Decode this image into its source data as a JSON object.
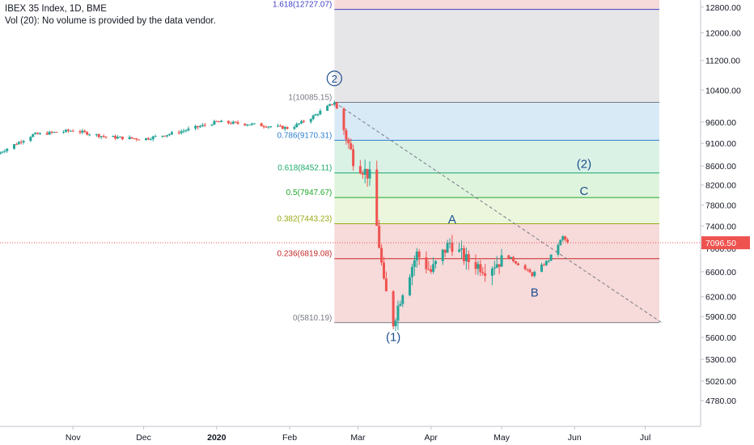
{
  "header": {
    "title": "IBEX 35 Index, 1D, BME",
    "volume_note": "Vol (20): No volume is provided by the data vendor."
  },
  "colors": {
    "up": "#26a69a",
    "down": "#ef5350",
    "current_price": "#ef5350",
    "wave_text": "#1e4f8f",
    "axis_text": "#131722",
    "axis_line": "#c0c3cc"
  },
  "price_axis": {
    "ylim": [
      4500,
      12950
    ],
    "ticks": [
      "12800.00",
      "12000.00",
      "11200.00",
      "10400.00",
      "9600.00",
      "9100.00",
      "8600.00",
      "8200.00",
      "7800.00",
      "7400.00",
      "7000.00",
      "6600.00",
      "6200.00",
      "5900.00",
      "5600.00",
      "5300.00",
      "5020.00",
      "4780.00"
    ],
    "scale": "log",
    "current_price": "7096.50"
  },
  "time_axis": {
    "ticks": [
      {
        "label": "Nov",
        "bold": false
      },
      {
        "label": "Dec",
        "bold": false
      },
      {
        "label": "2020",
        "bold": true
      },
      {
        "label": "Feb",
        "bold": false
      },
      {
        "label": "Mar",
        "bold": false
      },
      {
        "label": "Apr",
        "bold": false
      },
      {
        "label": "May",
        "bold": false
      },
      {
        "label": "Jun",
        "bold": false
      },
      {
        "label": "Jul",
        "bold": false
      }
    ]
  },
  "fibonacci": {
    "levels": [
      {
        "ratio": 1.618,
        "price": 12727.07,
        "label": "1.618(12727.07)",
        "color": "#3f3fc8",
        "fill": "#c8c8f0"
      },
      {
        "ratio": 1,
        "price": 10085.15,
        "label": "1(10085.15)",
        "color": "#787b86",
        "fill": "#e2e2e4"
      },
      {
        "ratio": 0.786,
        "price": 9170.31,
        "label": "0.786(9170.31)",
        "color": "#2f7fd1",
        "fill": "#d2e6f6"
      },
      {
        "ratio": 0.618,
        "price": 8452.11,
        "label": "0.618(8452.11)",
        "color": "#1aa86b",
        "fill": "#d4efe2"
      },
      {
        "ratio": 0.5,
        "price": 7947.67,
        "label": "0.5(7947.67)",
        "color": "#1fa82a",
        "fill": "#d9f2d7"
      },
      {
        "ratio": 0.382,
        "price": 7443.23,
        "label": "0.382(7443.23)",
        "color": "#9aa814",
        "fill": "#e7f4d7"
      },
      {
        "ratio": 0.236,
        "price": 6819.08,
        "label": "0.236(6819.08)",
        "color": "#c62828",
        "fill": "#f6d4d4"
      },
      {
        "ratio": 0,
        "price": 5810.19,
        "label": "0(5810.19)",
        "color": "#787b86",
        "fill": "#f6d4d4"
      }
    ]
  },
  "annotations": {
    "wave2_circled": "2",
    "wave1": "(1)",
    "wave2": "(2)",
    "A": "A",
    "B": "B",
    "C": "C"
  },
  "chart_data": {
    "type": "candlestick",
    "title": "IBEX 35 Index, 1D, BME",
    "scale": "log",
    "ylim": [
      4500,
      12950
    ],
    "x_labels": [
      "Nov",
      "Dec",
      "2020",
      "Feb",
      "Mar",
      "Apr",
      "May",
      "Jun",
      "Jul"
    ],
    "last_price": 7096.5,
    "price_path": [
      {
        "date": "2019-10-01",
        "close": 8900
      },
      {
        "date": "2019-10-15",
        "close": 9300
      },
      {
        "date": "2019-11-01",
        "close": 9400
      },
      {
        "date": "2019-11-15",
        "close": 9250
      },
      {
        "date": "2019-12-01",
        "close": 9200
      },
      {
        "date": "2019-12-15",
        "close": 9350
      },
      {
        "date": "2020-01-01",
        "close": 9600
      },
      {
        "date": "2020-01-15",
        "close": 9550
      },
      {
        "date": "2020-02-01",
        "close": 9450
      },
      {
        "date": "2020-02-10",
        "close": 9700
      },
      {
        "date": "2020-02-20",
        "close": 10085
      },
      {
        "date": "2020-02-28",
        "close": 8750
      },
      {
        "date": "2020-03-06",
        "close": 8380
      },
      {
        "date": "2020-03-12",
        "close": 6390
      },
      {
        "date": "2020-03-16",
        "close": 5810
      },
      {
        "date": "2020-03-20",
        "close": 6300
      },
      {
        "date": "2020-03-26",
        "close": 6900
      },
      {
        "date": "2020-04-01",
        "close": 6600
      },
      {
        "date": "2020-04-09",
        "close": 7100
      },
      {
        "date": "2020-04-16",
        "close": 6800
      },
      {
        "date": "2020-04-24",
        "close": 6650
      },
      {
        "date": "2020-05-04",
        "close": 6850
      },
      {
        "date": "2020-05-14",
        "close": 6550
      },
      {
        "date": "2020-05-21",
        "close": 6800
      },
      {
        "date": "2020-05-27",
        "close": 7200
      },
      {
        "date": "2020-05-29",
        "close": 7096.5
      }
    ],
    "fib_retracement": {
      "from": {
        "date": "2020-02-20",
        "price": 10085.15
      },
      "to": {
        "date": "2020-03-16",
        "price": 5810.19
      },
      "levels": [
        1.618,
        1,
        0.786,
        0.618,
        0.5,
        0.382,
        0.236,
        0
      ]
    },
    "trendline": {
      "from": {
        "date": "2020-02-20",
        "price": 10085.15
      },
      "to": {
        "date": "2020-07-08",
        "price": 5810.19
      },
      "style": "dashed"
    },
    "wave_labels": [
      {
        "text": "2",
        "date": "2020-02-20",
        "price": 10600,
        "circled": true
      },
      {
        "text": "(1)",
        "date": "2020-03-16",
        "price": 5550
      },
      {
        "text": "A",
        "date": "2020-04-10",
        "price": 7450
      },
      {
        "text": "B",
        "date": "2020-05-15",
        "price": 6200
      },
      {
        "text": "C",
        "date": "2020-06-05",
        "price": 8000
      },
      {
        "text": "(2)",
        "date": "2020-06-05",
        "price": 8560
      }
    ]
  }
}
